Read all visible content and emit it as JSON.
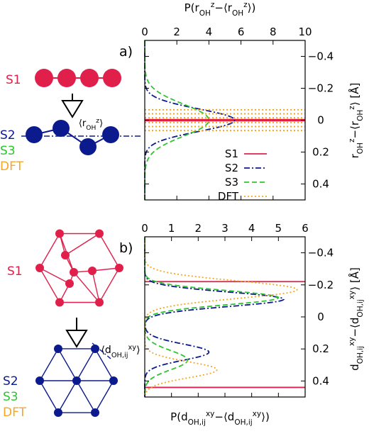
{
  "colors": {
    "S1": "#e0204a",
    "S2": "#0b1a8c",
    "S3": "#2ec42e",
    "DFT": "#f5a623",
    "axis": "#000000"
  },
  "schematic": {
    "a": {
      "labels": [
        {
          "key": "S1",
          "text": "S1"
        },
        {
          "key": "S2",
          "text": "S2"
        },
        {
          "key": "S3",
          "text": "S3"
        },
        {
          "key": "DFT",
          "text": "DFT"
        }
      ],
      "distance_label": "⟨r",
      "distance_sub": "OH",
      "distance_sup": "z",
      "distance_close": "⟩"
    },
    "b": {
      "labels": [
        {
          "key": "S1",
          "text": "S1"
        },
        {
          "key": "S2",
          "text": "S2"
        },
        {
          "key": "S3",
          "text": "S3"
        },
        {
          "key": "DFT",
          "text": "DFT"
        }
      ],
      "distance_label": "⟨d",
      "distance_sub": "OH,ij",
      "distance_sup": "xy",
      "distance_close": "⟩"
    }
  },
  "chart_data": [
    {
      "panel": "a)",
      "type": "line",
      "top_axis_label": "P(r_OH^z − ⟨r_OH^z⟩)",
      "right_axis_label": "r_OH^z − ⟨r_OH^z⟩ [Å]",
      "x_axis": {
        "range": [
          0,
          10
        ],
        "ticks": [
          "0",
          "2",
          "4",
          "6",
          "8",
          "10"
        ],
        "position": "top"
      },
      "y_axis": {
        "range": [
          -0.5,
          0.5
        ],
        "inverted": true,
        "ticks": [
          "-0.4",
          "-0.2",
          "0",
          "0.2",
          "0.4"
        ],
        "position": "right"
      },
      "legend": {
        "position": "inside-lower",
        "entries": [
          "S1",
          "S2",
          "S3",
          "DFT"
        ]
      },
      "series": [
        {
          "name": "S1",
          "style": "solid",
          "kind": "hlines",
          "y": [
            -0.004,
            0.004
          ]
        },
        {
          "name": "S2",
          "style": "dashdot",
          "kind": "gaussian",
          "peaks": [
            {
              "center": 0.0,
              "amp": 5.6,
              "sigma": 0.07
            }
          ]
        },
        {
          "name": "S3",
          "style": "dashed",
          "kind": "gaussian",
          "peaks": [
            {
              "center": 0.0,
              "amp": 4.0,
              "sigma": 0.1
            }
          ]
        },
        {
          "name": "DFT",
          "style": "dotted",
          "kind": "hlines",
          "y": [
            -0.065,
            -0.04,
            -0.015,
            0.015,
            0.04,
            0.065
          ]
        }
      ]
    },
    {
      "panel": "b)",
      "type": "line",
      "bottom_axis_label": "P(d_OH,ij^xy − ⟨d_OH,ij^xy⟩)",
      "right_axis_label": "d_OH,ij^xy − ⟨d_OH,ij^xy⟩ [Å]",
      "x_axis": {
        "range": [
          0,
          6
        ],
        "ticks": [
          "0",
          "1",
          "2",
          "3",
          "4",
          "5",
          "6"
        ],
        "position": "top"
      },
      "y_axis": {
        "range": [
          -0.5,
          0.5
        ],
        "inverted": true,
        "ticks": [
          "-0.4",
          "-0.2",
          "0",
          "0.2",
          "0.4"
        ],
        "position": "right"
      },
      "series": [
        {
          "name": "S1",
          "style": "solid",
          "kind": "hlines",
          "y": [
            -0.22,
            0.44
          ]
        },
        {
          "name": "S2",
          "style": "dashdot",
          "kind": "gaussian",
          "peaks": [
            {
              "center": -0.11,
              "amp": 5.2,
              "sigma": 0.045
            },
            {
              "center": 0.22,
              "amp": 2.4,
              "sigma": 0.05
            }
          ]
        },
        {
          "name": "S3",
          "style": "dashed",
          "kind": "gaussian",
          "peaks": [
            {
              "center": -0.12,
              "amp": 5.0,
              "sigma": 0.045
            },
            {
              "center": 0.27,
              "amp": 1.6,
              "sigma": 0.06
            }
          ]
        },
        {
          "name": "DFT",
          "style": "dotted",
          "kind": "gaussian",
          "peaks": [
            {
              "center": -0.17,
              "amp": 5.7,
              "sigma": 0.055
            },
            {
              "center": 0.33,
              "amp": 2.7,
              "sigma": 0.05
            }
          ]
        }
      ]
    }
  ]
}
